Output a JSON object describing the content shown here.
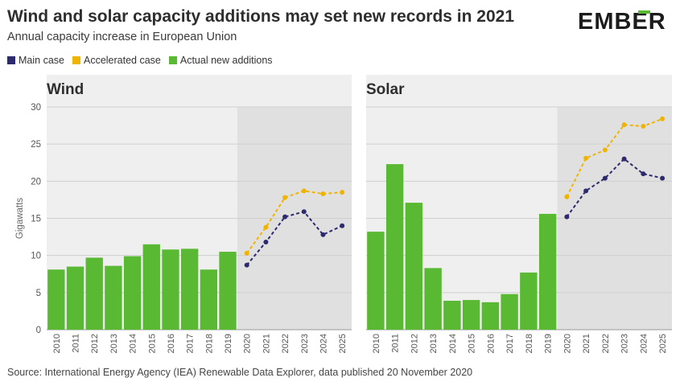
{
  "title": "Wind and solar capacity additions may set new records in 2021",
  "subtitle": "Annual capacity increase in European Union",
  "logo": {
    "text": "EMBER"
  },
  "legend": [
    {
      "label": "Main case",
      "color": "#2e2a6e"
    },
    {
      "label": "Accelerated case",
      "color": "#f0b400"
    },
    {
      "label": "Actual new additions",
      "color": "#5ab932"
    }
  ],
  "source": "Source: International Energy Agency (IEA) Renewable Data Explorer, data published 20 November 2020",
  "colors": {
    "actual": "#5ab932",
    "main": "#2e2a6e",
    "accelerated": "#f0b400",
    "panel_bg": "#efefef",
    "forecast_bg": "#e0e0e0",
    "grid": "#cfcfcf"
  },
  "chart_data": [
    {
      "type": "bar",
      "title": "Wind",
      "ylabel": "Gigawatts",
      "ylim": [
        0,
        30
      ],
      "yticks": [
        "0",
        "5",
        "10",
        "15",
        "20",
        "25",
        "30"
      ],
      "categories": [
        "2010",
        "2011",
        "2012",
        "2013",
        "2014",
        "2015",
        "2016",
        "2017",
        "2018",
        "2019",
        "2020",
        "2021",
        "2022",
        "2023",
        "2024",
        "2025"
      ],
      "series": [
        {
          "name": "Actual new additions",
          "type": "bar",
          "values": [
            8.1,
            8.5,
            9.7,
            8.6,
            9.9,
            11.5,
            10.8,
            10.9,
            8.1,
            10.5,
            null,
            null,
            null,
            null,
            null,
            null
          ]
        },
        {
          "name": "Main case",
          "type": "line",
          "values": [
            null,
            null,
            null,
            null,
            null,
            null,
            null,
            null,
            null,
            null,
            8.7,
            11.8,
            15.2,
            15.9,
            12.8,
            14.0
          ]
        },
        {
          "name": "Accelerated case",
          "type": "line",
          "values": [
            null,
            null,
            null,
            null,
            null,
            null,
            null,
            null,
            null,
            null,
            10.3,
            13.8,
            17.8,
            18.7,
            18.3,
            18.5
          ]
        }
      ]
    },
    {
      "type": "bar",
      "title": "Solar",
      "ylim": [
        0,
        30
      ],
      "categories": [
        "2010",
        "2011",
        "2012",
        "2013",
        "2014",
        "2015",
        "2016",
        "2017",
        "2018",
        "2019",
        "2020",
        "2021",
        "2022",
        "2023",
        "2024",
        "2025"
      ],
      "series": [
        {
          "name": "Actual new additions",
          "type": "bar",
          "values": [
            13.2,
            22.3,
            17.1,
            8.3,
            3.9,
            4.0,
            3.7,
            4.8,
            7.7,
            15.6,
            null,
            null,
            null,
            null,
            null,
            null
          ]
        },
        {
          "name": "Main case",
          "type": "line",
          "values": [
            null,
            null,
            null,
            null,
            null,
            null,
            null,
            null,
            null,
            null,
            15.2,
            18.7,
            20.4,
            23.0,
            21.0,
            20.4
          ]
        },
        {
          "name": "Accelerated case",
          "type": "line",
          "values": [
            null,
            null,
            null,
            null,
            null,
            null,
            null,
            null,
            null,
            null,
            17.9,
            23.1,
            24.2,
            27.6,
            27.4,
            28.4
          ]
        }
      ]
    }
  ]
}
